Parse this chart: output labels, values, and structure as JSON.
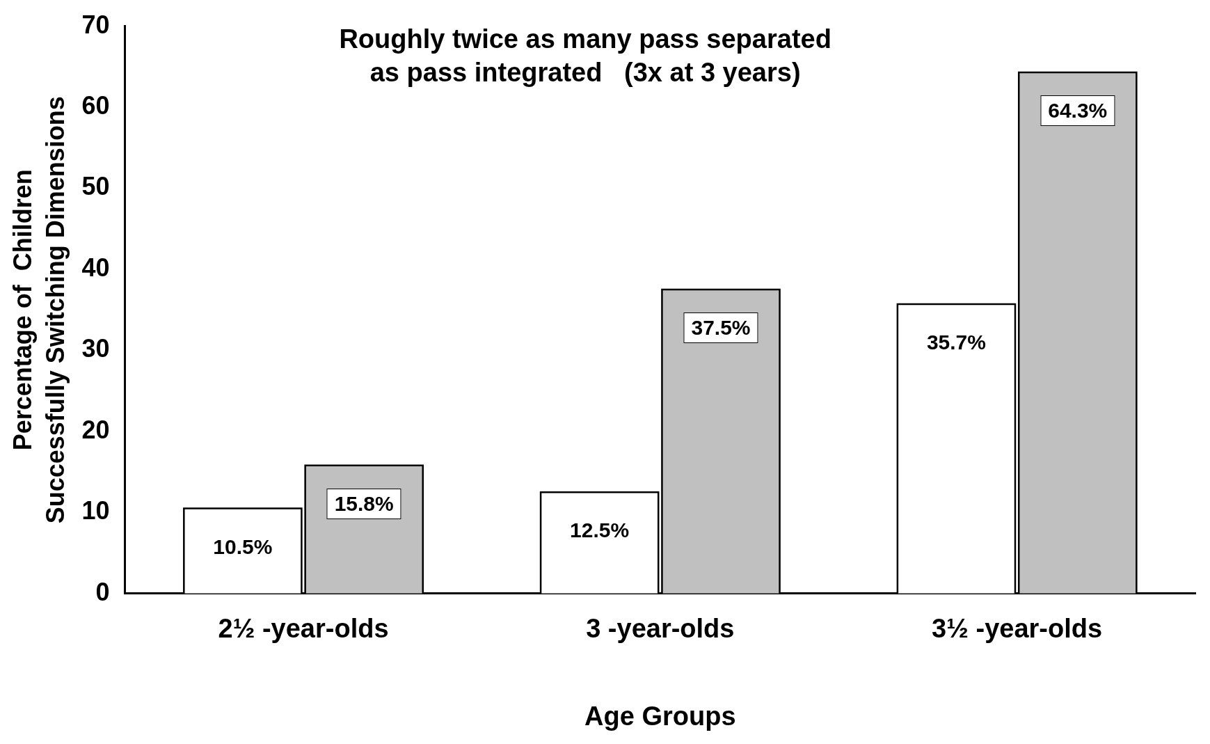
{
  "chart_data": {
    "type": "bar",
    "title": "Roughly twice as many pass separated\nas pass integrated   (3x at 3 years)",
    "xlabel": "Age Groups",
    "ylabel": "Percentage of  Children\nSuccessfully Switching Dimensions",
    "categories": [
      "2½ -year-olds",
      "3 -year-olds",
      "3½ -year-olds"
    ],
    "series": [
      {
        "color": "#ffffff",
        "values": [
          10.5,
          12.5,
          35.7
        ],
        "value_labels": [
          "10.5%",
          "12.5%",
          "35.7%"
        ]
      },
      {
        "color": "#c0c0c0",
        "values": [
          15.8,
          37.5,
          64.3
        ],
        "value_labels": [
          "15.8%",
          "37.5%",
          "64.3%"
        ]
      }
    ],
    "ylim": [
      0,
      70
    ],
    "yticks": [
      0,
      10,
      20,
      30,
      40,
      50,
      60,
      70
    ],
    "grid": false,
    "legend": false
  }
}
